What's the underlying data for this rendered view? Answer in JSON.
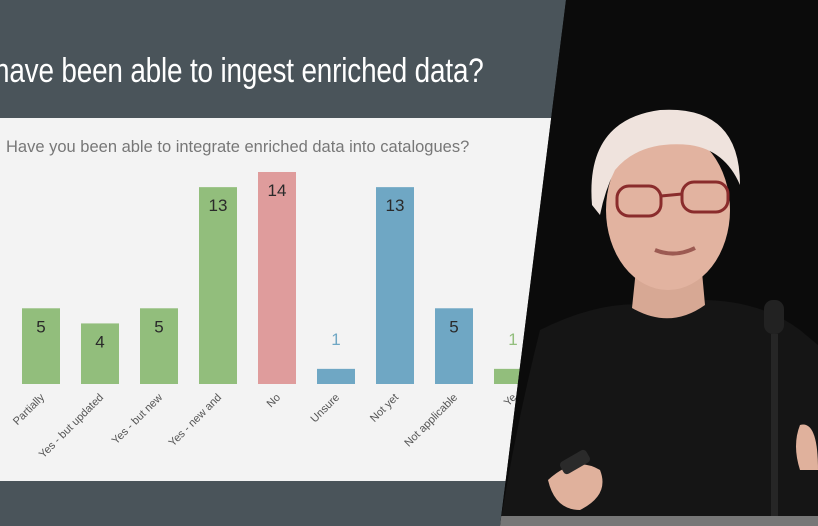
{
  "slide": {
    "title": "have been able to ingest enriched data?"
  },
  "colors": {
    "green": "#92be7c",
    "red": "#df9c9c",
    "blue": "#6fa7c4",
    "slide_bg": "#4a545a",
    "panel_bg": "#f3f3f3"
  },
  "chart_data": {
    "type": "bar",
    "title": "Have you been able to integrate enriched data into catalogues?",
    "categories": [
      "Partially",
      "Yes - but updated",
      "Yes - but new",
      "Yes - new and",
      "No",
      "Unsure",
      "Not yet",
      "Not applicable",
      "Ye"
    ],
    "values": [
      5,
      4,
      5,
      13,
      14,
      1,
      13,
      5,
      1
    ],
    "colors": [
      "green",
      "green",
      "green",
      "green",
      "red",
      "blue",
      "blue",
      "blue",
      "green"
    ],
    "ylim": [
      0,
      14
    ],
    "grid": false,
    "xlabel": "",
    "ylabel": ""
  },
  "photo": {
    "subject": "presenter-speaking-at-microphone"
  }
}
